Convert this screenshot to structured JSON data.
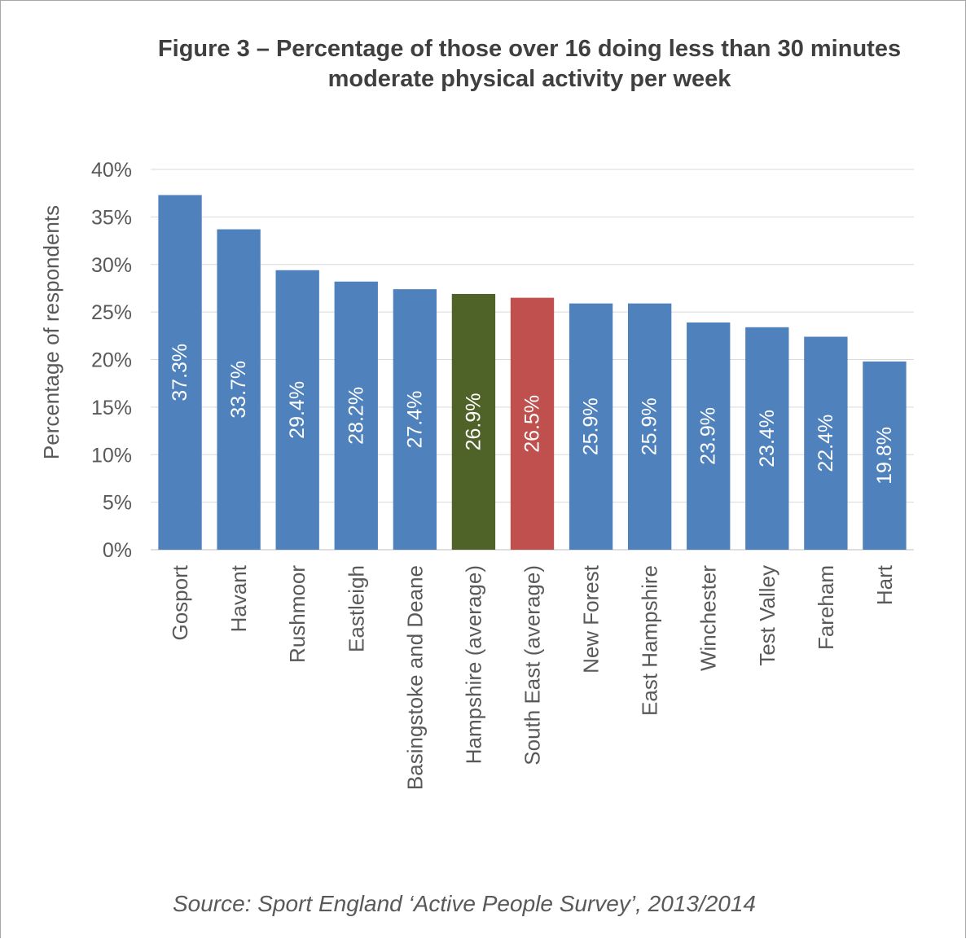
{
  "figure": {
    "title": "Figure 3 – Percentage of those over 16 doing less than 30 minutes\nmoderate physical activity per week",
    "source": "Source: Sport England ‘Active People Survey’, 2013/2014"
  },
  "colors": {
    "default_bar": "#4f81bd",
    "hampshire_bar": "#4f6228",
    "south_east_bar": "#c0504d",
    "gridline": "#d9d9d9",
    "axis_text": "#595959",
    "bar_label": "#ffffff"
  },
  "chart_data": {
    "type": "bar",
    "title": "Figure 3 – Percentage of those over 16 doing less than 30 minutes moderate physical activity per week",
    "xlabel": "",
    "ylabel": "Percentage of respondents",
    "ylim": [
      0,
      40
    ],
    "yticks": [
      "0%",
      "5%",
      "10%",
      "15%",
      "20%",
      "25%",
      "30%",
      "35%",
      "40%"
    ],
    "grid": true,
    "legend": "none",
    "categories": [
      "Gosport",
      "Havant",
      "Rushmoor",
      "Eastleigh",
      "Basingstoke and Deane",
      "Hampshire (average)",
      "South East (average)",
      "New Forest",
      "East Hampshire",
      "Winchester",
      "Test Valley",
      "Fareham",
      "Hart"
    ],
    "values": [
      37.3,
      33.7,
      29.4,
      28.2,
      27.4,
      26.9,
      26.5,
      25.9,
      25.9,
      23.9,
      23.4,
      22.4,
      19.8
    ],
    "data_labels": [
      "37.3%",
      "33.7%",
      "29.4%",
      "28.2%",
      "27.4%",
      "26.9%",
      "26.5%",
      "25.9%",
      "25.9%",
      "23.9%",
      "23.4%",
      "22.4%",
      "19.8%"
    ],
    "bar_colors": [
      "#4f81bd",
      "#4f81bd",
      "#4f81bd",
      "#4f81bd",
      "#4f81bd",
      "#4f6228",
      "#c0504d",
      "#4f81bd",
      "#4f81bd",
      "#4f81bd",
      "#4f81bd",
      "#4f81bd",
      "#4f81bd"
    ]
  }
}
